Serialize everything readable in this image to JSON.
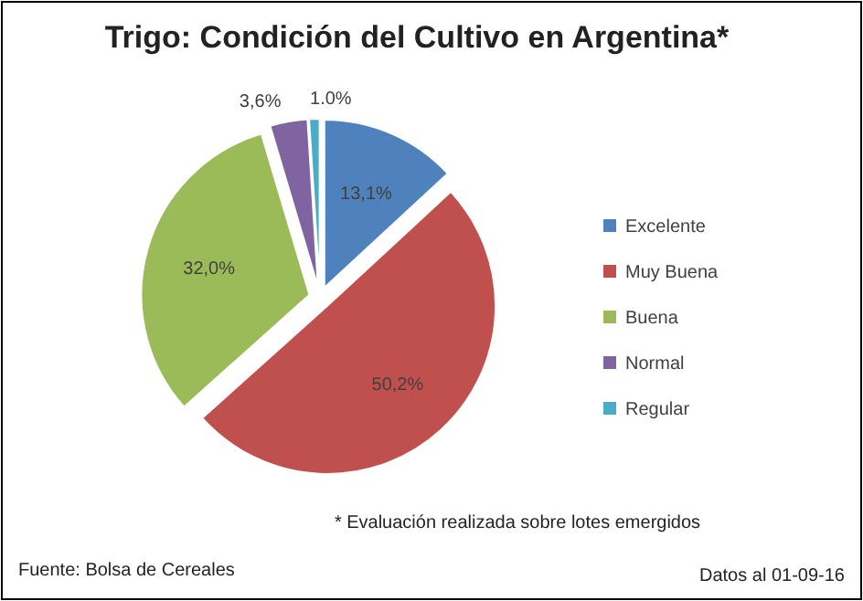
{
  "chart_data": {
    "type": "pie",
    "title": "Trigo: Condición del Cultivo en Argentina*",
    "categories": [
      "Excelente",
      "Muy Buena",
      "Buena",
      "Normal",
      "Regular"
    ],
    "values": [
      13.1,
      50.2,
      32.0,
      3.6,
      1.0
    ],
    "value_labels": [
      "13,1%",
      "50,2%",
      "32,0%",
      "3,6%",
      "1.0%"
    ],
    "colors": [
      "#4f81bd",
      "#c0504d",
      "#9bbb59",
      "#8064a2",
      "#4bacc6"
    ],
    "legend": "right",
    "annotations": [
      "* Evaluación realizada sobre lotes emergidos",
      "Fuente: Bolsa de Cereales",
      "Datos al 01-09-16"
    ]
  }
}
